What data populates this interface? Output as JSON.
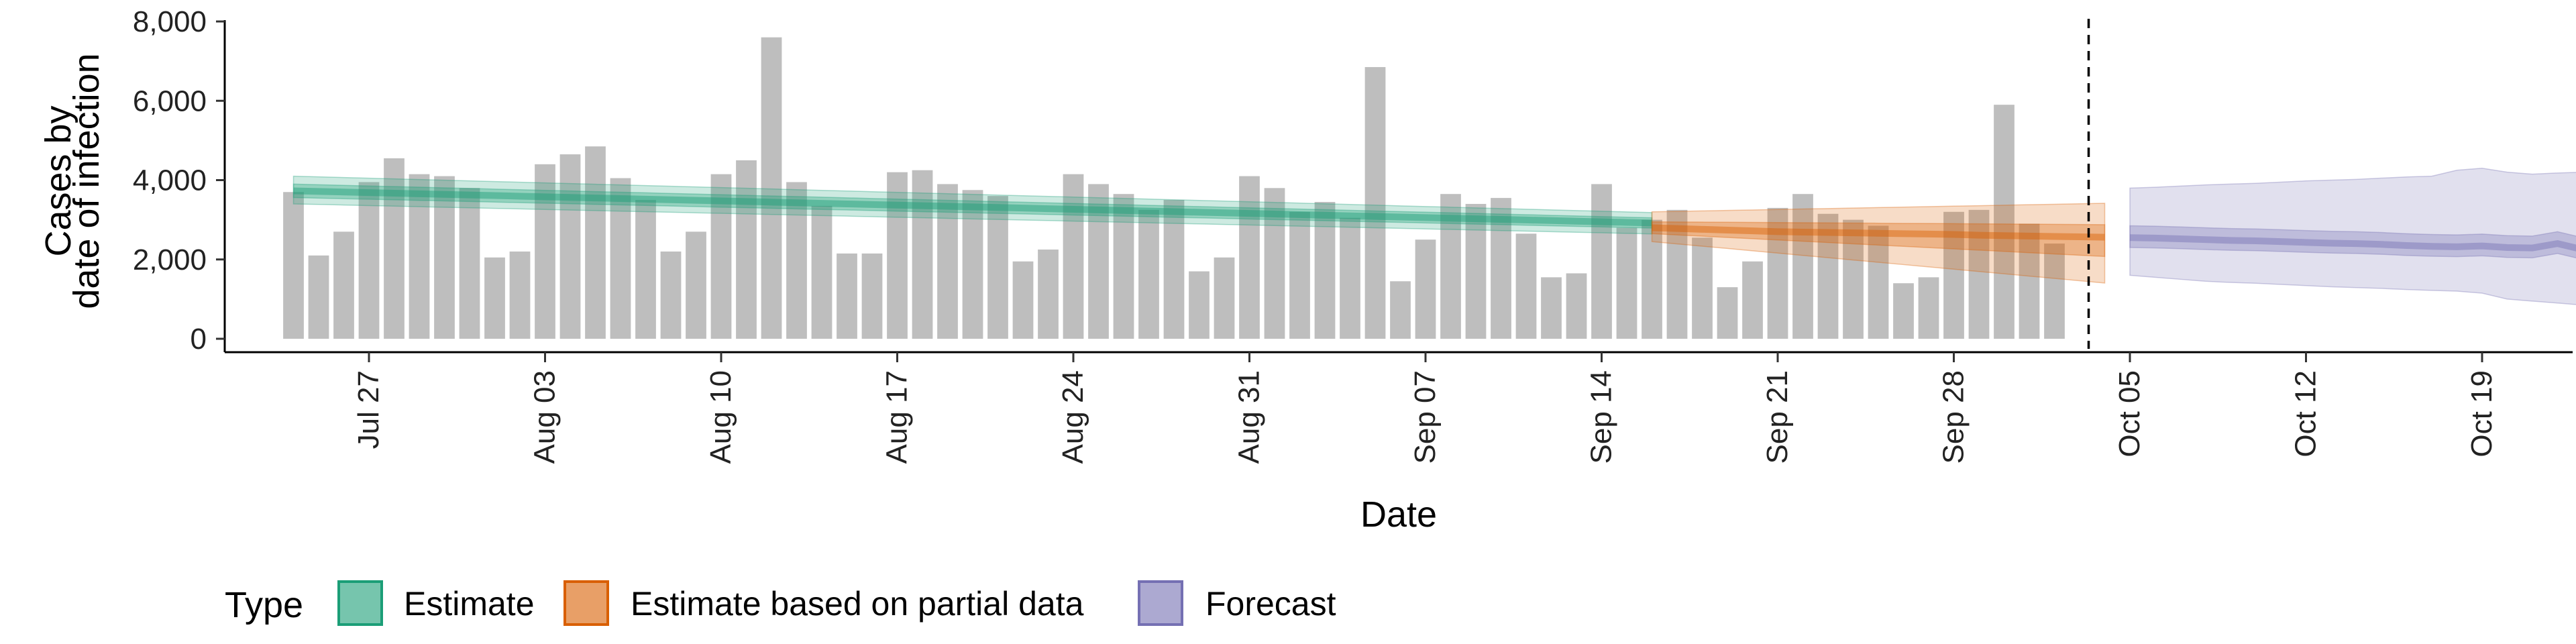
{
  "chart_data": {
    "type": "bar",
    "title": "",
    "xlabel": "Date",
    "ylabel_line1": "Cases by",
    "ylabel_line2": "date of infection",
    "ylim": [
      0,
      8000
    ],
    "y_ticks": [
      0,
      2000,
      4000,
      6000,
      8000
    ],
    "y_tick_labels": [
      "0",
      "2,000",
      "4,000",
      "6,000",
      "8,000"
    ],
    "x_range": [
      "2020-07-25",
      "2020-10-20"
    ],
    "x_ticks": [
      "2020-07-27",
      "2020-08-03",
      "2020-08-10",
      "2020-08-17",
      "2020-08-24",
      "2020-08-31",
      "2020-09-07",
      "2020-09-14",
      "2020-09-21",
      "2020-09-28",
      "2020-10-05",
      "2020-10-12",
      "2020-10-19"
    ],
    "x_tick_labels": [
      "Jul 27",
      "Aug 03",
      "Aug 10",
      "Aug 17",
      "Aug 24",
      "Aug 31",
      "Sep 07",
      "Sep 14",
      "Sep 21",
      "Sep 28",
      "Oct 05",
      "Oct 12",
      "Oct 19"
    ],
    "bar_color": "#bebebe",
    "bars": {
      "start_date": "2020-07-24",
      "values": [
        3700,
        2100,
        2700,
        3950,
        4550,
        4150,
        4100,
        3800,
        2050,
        2200,
        4400,
        4650,
        4850,
        4050,
        3500,
        2200,
        2700,
        4150,
        4500,
        7600,
        3950,
        3350,
        2150,
        2150,
        4200,
        4250,
        3900,
        3750,
        3600,
        1950,
        2250,
        4150,
        3900,
        3650,
        3250,
        3500,
        1700,
        2050,
        4100,
        3800,
        3200,
        3450,
        3050,
        6850,
        1450,
        2500,
        3650,
        3400,
        3550,
        2650,
        1550,
        1650,
        3900,
        2800,
        3000,
        3250,
        2550,
        1300,
        1950,
        3300,
        3650,
        3150,
        3000,
        2850,
        1400,
        1550,
        3200,
        3250,
        5900,
        2900,
        2400
      ]
    },
    "cutoff_date": "2020-10-04",
    "series": [
      {
        "name": "Estimate",
        "color": "#1b9e77",
        "start_date": "2020-07-24",
        "median": [
          3730,
          3715,
          3700,
          3685,
          3670,
          3655,
          3640,
          3625,
          3610,
          3595,
          3580,
          3565,
          3550,
          3535,
          3520,
          3505,
          3490,
          3475,
          3460,
          3445,
          3430,
          3415,
          3400,
          3385,
          3370,
          3355,
          3340,
          3325,
          3310,
          3295,
          3280,
          3265,
          3250,
          3235,
          3220,
          3205,
          3190,
          3175,
          3160,
          3145,
          3130,
          3115,
          3100,
          3085,
          3070,
          3055,
          3040,
          3025,
          3010,
          2995,
          2980,
          2965,
          2950,
          2935,
          2920
        ],
        "inner_low": [
          3560,
          3546,
          3531,
          3517,
          3503,
          3489,
          3475,
          3460,
          3446,
          3432,
          3418,
          3403,
          3389,
          3375,
          3361,
          3346,
          3332,
          3318,
          3304,
          3290,
          3275,
          3261,
          3247,
          3233,
          3218,
          3204,
          3190,
          3176,
          3161,
          3147,
          3133,
          3119,
          3105,
          3090,
          3076,
          3062,
          3048,
          3033,
          3019,
          3005,
          2991,
          2976,
          2962,
          2948,
          2934,
          2920,
          2905,
          2891,
          2877,
          2863,
          2848,
          2834,
          2820,
          2806,
          2791
        ],
        "inner_high": [
          3900,
          3884,
          3869,
          3853,
          3837,
          3822,
          3806,
          3790,
          3774,
          3759,
          3743,
          3727,
          3711,
          3696,
          3680,
          3664,
          3648,
          3633,
          3617,
          3601,
          3585,
          3570,
          3554,
          3538,
          3522,
          3507,
          3491,
          3475,
          3459,
          3444,
          3428,
          3412,
          3396,
          3381,
          3365,
          3349,
          3333,
          3318,
          3302,
          3286,
          3270,
          3255,
          3239,
          3223,
          3207,
          3192,
          3176,
          3160,
          3144,
          3129,
          3113,
          3097,
          3081,
          3066,
          3050
        ],
        "outer_low": [
          3400,
          3386,
          3372,
          3358,
          3344,
          3330,
          3316,
          3302,
          3288,
          3274,
          3260,
          3246,
          3232,
          3218,
          3204,
          3190,
          3176,
          3162,
          3148,
          3134,
          3120,
          3106,
          3092,
          3078,
          3064,
          3050,
          3036,
          3022,
          3008,
          2994,
          2980,
          2966,
          2952,
          2938,
          2924,
          2910,
          2896,
          2882,
          2868,
          2854,
          2840,
          2826,
          2812,
          2798,
          2784,
          2770,
          2756,
          2742,
          2728,
          2714,
          2700,
          2686,
          2672,
          2658,
          2644
        ],
        "outer_high": [
          4100,
          4083,
          4066,
          4049,
          4032,
          4015,
          3998,
          3981,
          3964,
          3947,
          3930,
          3913,
          3896,
          3879,
          3862,
          3845,
          3828,
          3811,
          3794,
          3777,
          3760,
          3743,
          3726,
          3709,
          3692,
          3675,
          3658,
          3641,
          3624,
          3607,
          3590,
          3573,
          3556,
          3539,
          3522,
          3505,
          3488,
          3471,
          3454,
          3437,
          3420,
          3403,
          3386,
          3369,
          3352,
          3335,
          3318,
          3301,
          3284,
          3267,
          3250,
          3233,
          3216,
          3199,
          3182
        ]
      },
      {
        "name": "Estimate based on partial data",
        "color": "#d95f02",
        "start_date": "2020-09-16",
        "median": [
          2800,
          2780,
          2760,
          2740,
          2720,
          2700,
          2690,
          2680,
          2670,
          2660,
          2650,
          2640,
          2630,
          2610,
          2600,
          2590,
          2580,
          2570,
          2560
        ],
        "inner_low": [
          2650,
          2618,
          2586,
          2554,
          2522,
          2490,
          2458,
          2426,
          2394,
          2362,
          2330,
          2298,
          2266,
          2234,
          2202,
          2170,
          2138,
          2106,
          2074
        ],
        "inner_high": [
          2950,
          2946,
          2942,
          2938,
          2934,
          2930,
          2926,
          2922,
          2918,
          2914,
          2910,
          2906,
          2902,
          2898,
          2894,
          2890,
          2886,
          2882,
          2878
        ],
        "outer_low": [
          2450,
          2392,
          2334,
          2276,
          2218,
          2160,
          2102,
          2044,
          1986,
          1928,
          1870,
          1812,
          1754,
          1696,
          1638,
          1580,
          1522,
          1464,
          1406
        ],
        "outer_high": [
          3200,
          3212,
          3224,
          3236,
          3248,
          3260,
          3272,
          3284,
          3296,
          3308,
          3320,
          3332,
          3344,
          3356,
          3368,
          3380,
          3392,
          3404,
          3416
        ]
      },
      {
        "name": "Forecast",
        "color": "#7570b3",
        "start_date": "2020-10-05",
        "median": [
          2550,
          2540,
          2520,
          2500,
          2480,
          2470,
          2450,
          2430,
          2410,
          2400,
          2380,
          2350,
          2330,
          2320,
          2340,
          2300,
          2290,
          2400,
          2250
        ],
        "inner_low": [
          2300,
          2290,
          2270,
          2250,
          2230,
          2220,
          2200,
          2180,
          2160,
          2150,
          2130,
          2100,
          2080,
          2070,
          2090,
          2050,
          2040,
          2150,
          2000
        ],
        "inner_high": [
          2850,
          2840,
          2820,
          2800,
          2780,
          2770,
          2750,
          2730,
          2710,
          2700,
          2680,
          2650,
          2630,
          2620,
          2640,
          2600,
          2590,
          2700,
          2550
        ],
        "outer_low": [
          1600,
          1550,
          1500,
          1450,
          1420,
          1400,
          1370,
          1340,
          1310,
          1290,
          1270,
          1240,
          1220,
          1200,
          1150,
          1000,
          950,
          900,
          850
        ],
        "outer_high": [
          3800,
          3820,
          3850,
          3880,
          3900,
          3920,
          3950,
          3980,
          4000,
          4020,
          4050,
          4080,
          4100,
          4250,
          4300,
          4200,
          4150,
          4180,
          4200
        ]
      }
    ],
    "legend": {
      "title": "Type",
      "placement": "bottom-left",
      "entries": [
        "Estimate",
        "Estimate based on partial data",
        "Forecast"
      ]
    }
  }
}
